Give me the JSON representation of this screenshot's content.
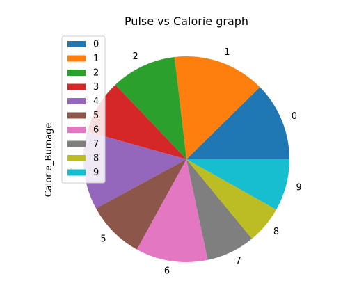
{
  "chart_data": {
    "type": "pie",
    "title": "Pulse vs Calorie graph",
    "ylabel": "Calorie_Burnage",
    "labels": [
      "0",
      "1",
      "2",
      "3",
      "4",
      "5",
      "6",
      "7",
      "8",
      "9"
    ],
    "values": [
      409.1,
      479.0,
      340.0,
      282.4,
      406.0,
      300.0,
      374.0,
      253.3,
      195.1,
      269.0
    ],
    "colors": [
      "#1f77b4",
      "#ff7f0e",
      "#2ca02c",
      "#d62728",
      "#9467bd",
      "#8c564b",
      "#e377c2",
      "#7f7f7f",
      "#bcbd22",
      "#17becf"
    ],
    "legend": {
      "placement": "upper-left",
      "entries": [
        "0",
        "1",
        "2",
        "3",
        "4",
        "5",
        "6",
        "7",
        "8",
        "9"
      ]
    }
  }
}
